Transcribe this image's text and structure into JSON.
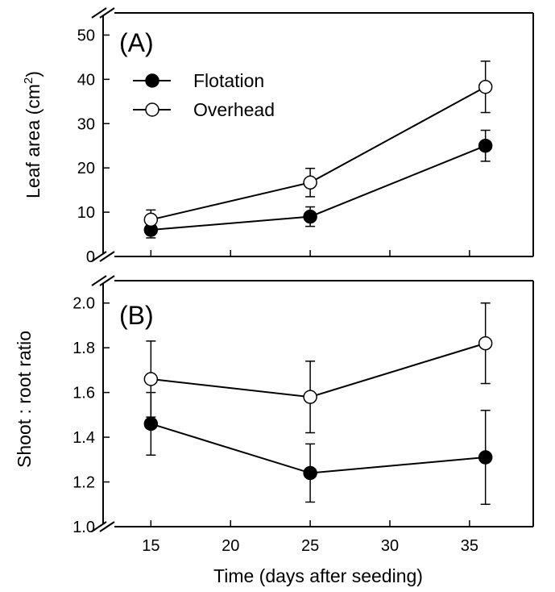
{
  "figure": {
    "xlabel": "Time (days after seeding)"
  },
  "chart_data": [
    {
      "type": "line",
      "panel": "(A)",
      "ylabel": "Leaf area (cm",
      "ylabel_sup": "2",
      "ylabel_close": ")",
      "xlim": [
        12,
        39
      ],
      "ylim": [
        0,
        55
      ],
      "xticks": [
        15,
        20,
        25,
        30,
        35
      ],
      "yticks": [
        0,
        10,
        20,
        30,
        40,
        50
      ],
      "legend": {
        "placement": "top-left"
      },
      "series": [
        {
          "name": "Flotation",
          "marker": "filled-circle",
          "x": [
            15,
            25,
            36
          ],
          "y": [
            6,
            9,
            25
          ],
          "err": [
            1.8,
            2.2,
            3.5
          ]
        },
        {
          "name": "Overhead",
          "marker": "open-circle",
          "x": [
            15,
            25,
            36
          ],
          "y": [
            8.3,
            16.7,
            38.3
          ],
          "err": [
            2.2,
            3.2,
            5.8
          ]
        }
      ]
    },
    {
      "type": "line",
      "panel": "(B)",
      "ylabel": "Shoot : root ratio",
      "xlim": [
        12,
        39
      ],
      "ylim": [
        1.0,
        2.1
      ],
      "xticks": [
        15,
        20,
        25,
        30,
        35
      ],
      "yticks": [
        1.0,
        1.2,
        1.4,
        1.6,
        1.8,
        2.0
      ],
      "ytick_decimals": 1,
      "series": [
        {
          "name": "Flotation",
          "marker": "filled-circle",
          "x": [
            15,
            25,
            36
          ],
          "y": [
            1.46,
            1.24,
            1.31
          ],
          "err": [
            0.14,
            0.13,
            0.21
          ]
        },
        {
          "name": "Overhead",
          "marker": "open-circle",
          "x": [
            15,
            25,
            36
          ],
          "y": [
            1.66,
            1.58,
            1.82
          ],
          "err": [
            0.17,
            0.16,
            0.18
          ]
        }
      ]
    }
  ]
}
